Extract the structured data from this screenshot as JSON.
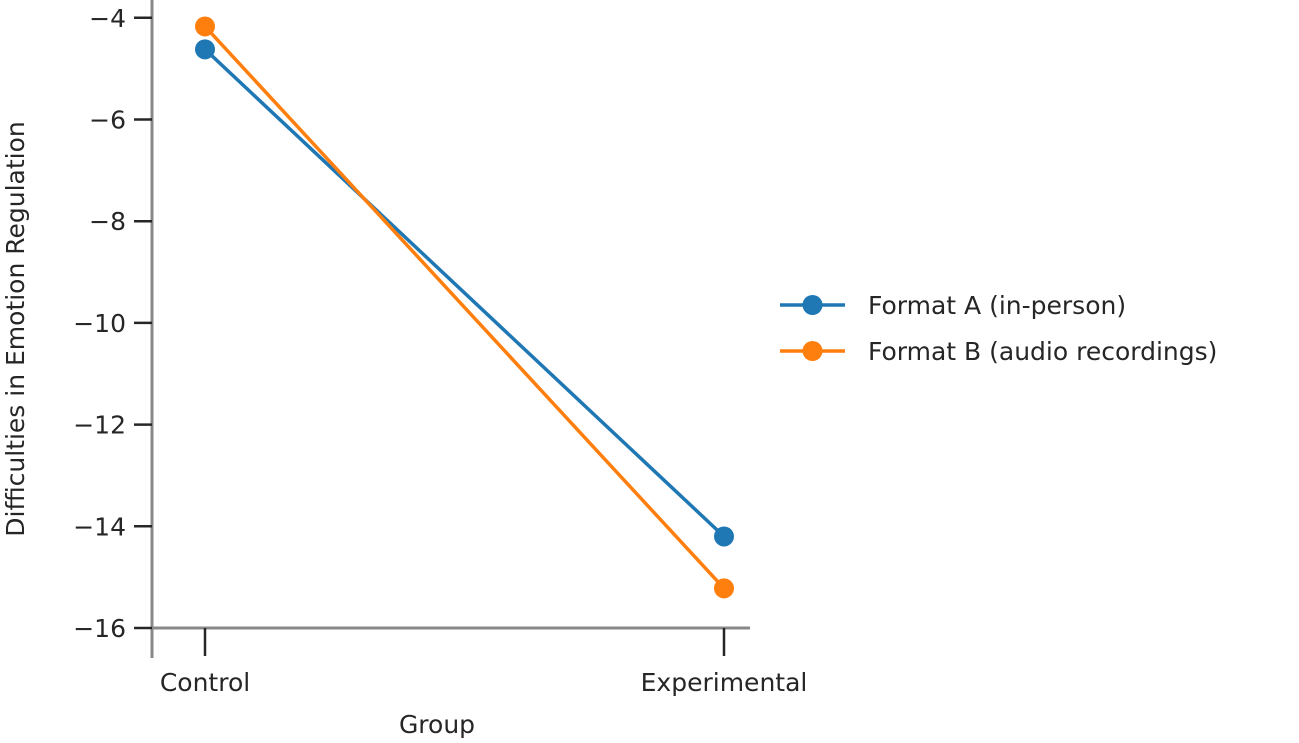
{
  "chart_data": {
    "type": "line",
    "title": "",
    "xlabel": "Group",
    "ylabel": "Difficulties in Emotion Regulation",
    "categories": [
      "Control",
      "Experimental"
    ],
    "series": [
      {
        "name": "Format A (in-person)",
        "values": [
          -4.62,
          -14.2
        ],
        "color": "#1f77b4"
      },
      {
        "name": "Format B (audio recordings)",
        "values": [
          -4.17,
          -15.22
        ],
        "color": "#ff7f0e"
      }
    ],
    "ylim": [
      -16.0,
      -3.65
    ],
    "yticks": [
      -16,
      -14,
      -12,
      -10,
      -8,
      -6,
      -4
    ],
    "ytick_labels": [
      "−16",
      "−14",
      "−12",
      "−10",
      "−8",
      "−6",
      "−4"
    ],
    "grid": false,
    "legend_position": "outside-right",
    "axis_color": "#888888"
  }
}
